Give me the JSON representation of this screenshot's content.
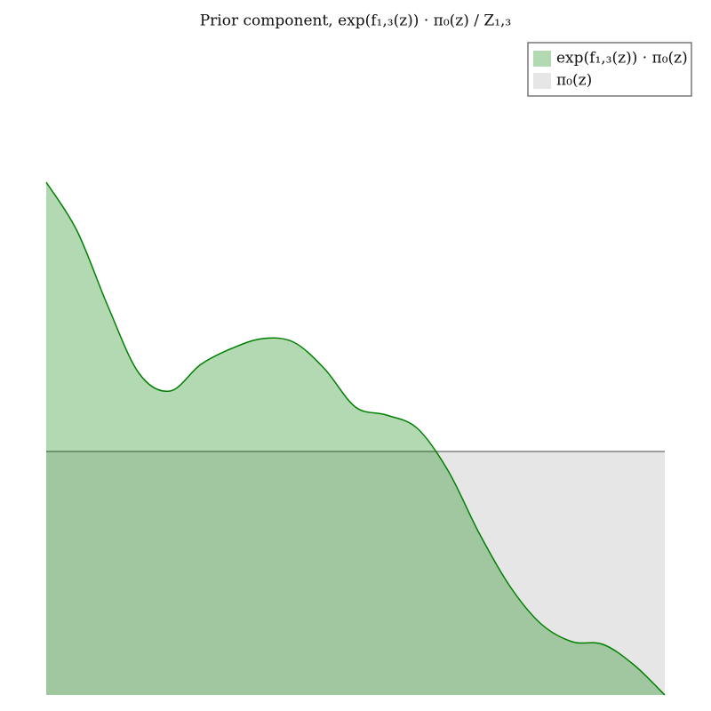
{
  "chart_data": {
    "type": "area",
    "title": "Prior component, exp(f₁,₃(z)) · π₀(z) / Z₁,₃",
    "x": [
      0,
      1,
      2,
      3,
      4,
      5,
      6,
      7,
      8,
      9,
      10,
      11,
      12,
      13,
      14,
      15,
      16,
      17,
      18,
      19,
      20
    ],
    "xlim": [
      0,
      20
    ],
    "ylim": [
      0,
      600
    ],
    "legend": "upper right",
    "series": [
      {
        "name": "π₀(z)",
        "color": "#808080",
        "values": [
          274,
          274,
          274,
          274,
          274,
          274,
          274,
          274,
          274,
          274,
          274,
          274,
          274,
          274,
          274,
          274,
          274,
          274,
          274,
          274,
          274
        ]
      },
      {
        "name": "exp(f₁,₃(z)) · π₀(z)",
        "color": "#008000",
        "values": [
          577,
          522,
          437,
          362,
          342,
          372,
          390,
          401,
          397,
          367,
          324,
          315,
          300,
          252,
          182,
          122,
          80,
          60,
          57,
          34,
          0
        ]
      }
    ]
  }
}
